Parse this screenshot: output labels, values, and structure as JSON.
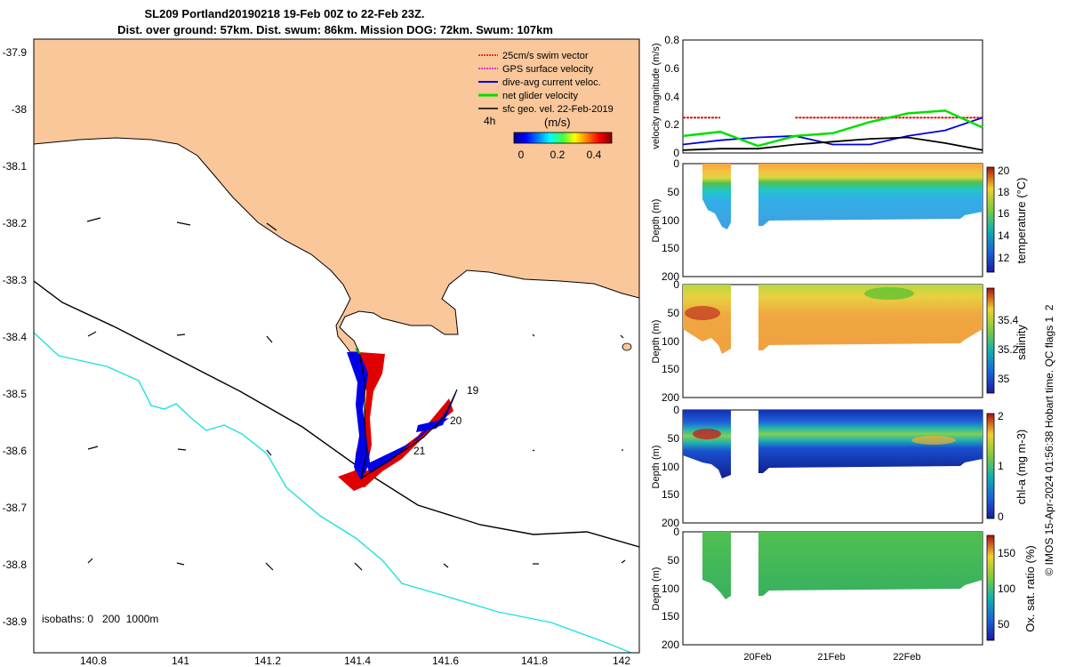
{
  "title_line1": "SL209 Portland20190218 19-Feb 00Z to 22-Feb 23Z.",
  "title_line2": "Dist. over ground: 57km. Dist. swum: 86km. Mission DOG: 72km. Swum: 107km",
  "map": {
    "x_ticks": [
      "140.8",
      "141",
      "141.2",
      "141.4",
      "141.6",
      "141.8",
      "142"
    ],
    "y_ticks": [
      "-37.9",
      "-38",
      "-38.1",
      "-38.2",
      "-38.3",
      "-38.4",
      "-38.5",
      "-38.6",
      "-38.7",
      "-38.8",
      "-38.9"
    ],
    "isobaths_label": "isobaths: 0   200  1000m",
    "day_labels": [
      "19",
      "20",
      "21"
    ],
    "legend": [
      {
        "label": "25cm/s swim vector",
        "color": "#e00000"
      },
      {
        "label": "GPS surface velocity",
        "color": "#e000e0"
      },
      {
        "label": "dive-avg current veloc.",
        "color": "#0000e0"
      },
      {
        "label": "net glider velocity",
        "color": "#00e000"
      },
      {
        "label": "sfc geo. vel. 22-Feb-2019",
        "color": "#000000"
      }
    ],
    "colorbar": {
      "time_label": "4h",
      "unit": "(m/s)",
      "ticks": [
        "0",
        "0.2",
        "0.4"
      ]
    },
    "colors": {
      "land": "#f9c79a",
      "isobath_200": "#000000",
      "isobath_1000": "#20e0e0"
    }
  },
  "panels": [
    {
      "ylabel": "velocity magnitude (m/s)",
      "yticks": [
        "0",
        "0.2",
        "0.4",
        "0.6",
        "0.8"
      ]
    },
    {
      "ylabel": "Depth (m)",
      "yticks": [
        "0",
        "50",
        "100",
        "150",
        "200"
      ],
      "cb_label": "temperature (°C)",
      "cb_ticks": [
        "12",
        "14",
        "16",
        "18",
        "20"
      ]
    },
    {
      "ylabel": "Depth (m)",
      "yticks": [
        "0",
        "50",
        "100",
        "150",
        "200"
      ],
      "cb_label": "salinity",
      "cb_ticks": [
        "35",
        "35.2",
        "35.4"
      ]
    },
    {
      "ylabel": "Depth (m)",
      "yticks": [
        "0",
        "50",
        "100",
        "150",
        "200"
      ],
      "cb_label": "chl-a (mg m-3)",
      "cb_ticks": [
        "0",
        "1",
        "2"
      ]
    },
    {
      "ylabel": "Depth (m)",
      "yticks": [
        "0",
        "50",
        "100",
        "150",
        "200"
      ],
      "cb_label": "Ox. sat. ratio (%)",
      "cb_ticks": [
        "50",
        "100",
        "150"
      ]
    }
  ],
  "x_dates": [
    "20Feb",
    "21Feb",
    "22Feb"
  ],
  "footer": "© IMOS 15-Apr-2024 01:56:38 Hobart time. QC flags 1  2",
  "chart_data": [
    {
      "type": "line",
      "title": "",
      "ylabel": "velocity magnitude (m/s)",
      "ylim": [
        0,
        0.8
      ],
      "x": [
        "19-Feb 00Z",
        "19-Feb 12Z",
        "20-Feb 00Z",
        "20-Feb 12Z",
        "21-Feb 00Z",
        "21-Feb 12Z",
        "22-Feb 00Z",
        "22-Feb 12Z",
        "22-Feb 23Z"
      ],
      "series": [
        {
          "name": "25cm/s swim vector",
          "color": "#e00000",
          "values": [
            0.25,
            0.25,
            null,
            0.25,
            0.25,
            0.25,
            0.25,
            0.25,
            0.25
          ]
        },
        {
          "name": "dive-avg current veloc.",
          "color": "#0000e0",
          "values": [
            0.06,
            0.09,
            0.11,
            0.12,
            0.06,
            0.06,
            0.12,
            0.16,
            0.25
          ]
        },
        {
          "name": "net glider velocity",
          "color": "#00e000",
          "values": [
            0.12,
            0.15,
            0.05,
            0.12,
            0.14,
            0.22,
            0.28,
            0.3,
            0.18
          ]
        },
        {
          "name": "sfc geo. vel. 22-Feb-2019",
          "color": "#000000",
          "values": [
            0.02,
            0.03,
            0.03,
            0.06,
            0.08,
            0.1,
            0.11,
            0.07,
            0.02
          ]
        }
      ]
    },
    {
      "type": "heatmap",
      "variable": "temperature (°C)",
      "ylim": [
        0,
        200
      ],
      "clim": [
        11,
        20.5
      ],
      "profile_depth_m": [
        0,
        25,
        50,
        75,
        100
      ],
      "values_by_depth": [
        20,
        19,
        17,
        14.5,
        13.5
      ]
    },
    {
      "type": "heatmap",
      "variable": "salinity",
      "ylim": [
        0,
        200
      ],
      "clim": [
        34.9,
        35.55
      ],
      "profile_depth_m": [
        0,
        25,
        50,
        75,
        100
      ],
      "values_by_depth": [
        35.4,
        35.35,
        35.3,
        35.3,
        35.3
      ]
    },
    {
      "type": "heatmap",
      "variable": "chl-a (mg m-3)",
      "ylim": [
        0,
        200
      ],
      "clim": [
        0,
        2
      ],
      "profile_depth_m": [
        0,
        25,
        50,
        75,
        100
      ],
      "values_by_depth": [
        0.3,
        0.7,
        1.3,
        0.6,
        0.3
      ]
    },
    {
      "type": "heatmap",
      "variable": "Ox. sat. ratio (%)",
      "ylim": [
        0,
        200
      ],
      "clim": [
        25,
        170
      ],
      "profile_depth_m": [
        0,
        25,
        50,
        75,
        100
      ],
      "values_by_depth": [
        110,
        110,
        108,
        105,
        100
      ]
    }
  ]
}
